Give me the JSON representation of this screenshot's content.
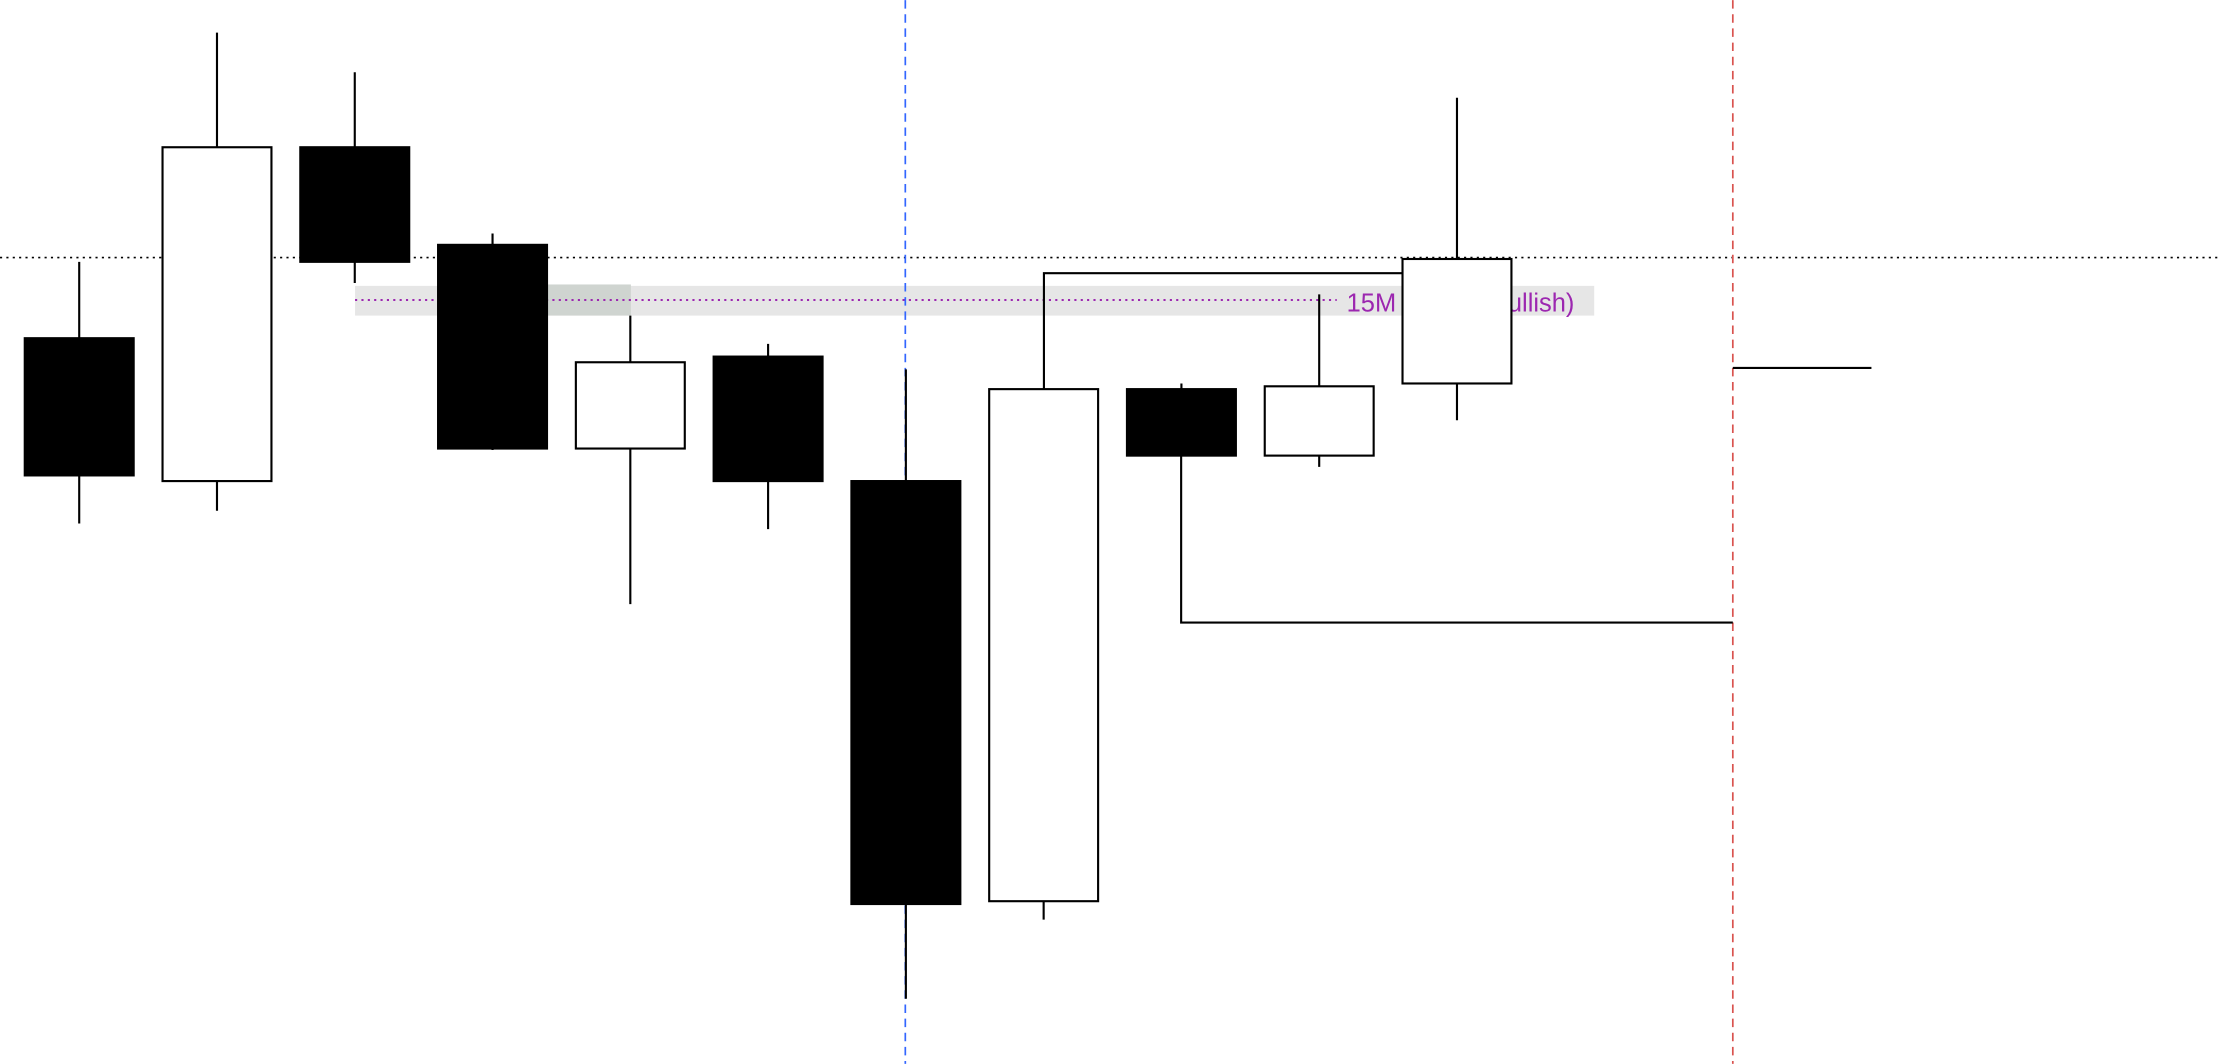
{
  "chart_data": {
    "type": "candlestick",
    "title": "",
    "xlabel": "",
    "ylabel": "",
    "grid": false,
    "ylim": [
      46,
      729
    ],
    "candles": [
      {
        "open": 513,
        "high": 567,
        "low": 382,
        "close": 416
      },
      {
        "open": 412,
        "high": 729,
        "low": 391,
        "close": 648
      },
      {
        "open": 648,
        "high": 701,
        "low": 552,
        "close": 567
      },
      {
        "open": 579,
        "high": 587,
        "low": 434,
        "close": 435
      },
      {
        "open": 435,
        "high": 529,
        "low": 325,
        "close": 496
      },
      {
        "open": 500,
        "high": 509,
        "low": 378,
        "close": 412
      },
      {
        "open": 412,
        "high": 491,
        "low": 46,
        "close": 113
      },
      {
        "open": 115,
        "high": 477,
        "low": 102,
        "close": 477
      },
      {
        "open": 477,
        "high": 481,
        "low": 430,
        "close": 430
      },
      {
        "open": 430,
        "high": 544,
        "low": 422,
        "close": 479
      },
      {
        "open": 481,
        "high": 683,
        "low": 455,
        "close": 569
      }
    ],
    "colors": {
      "bullish": "#ffffff",
      "bearish": "#000000",
      "outline": "#000000"
    },
    "reference_lines": {
      "dotted_level": 570,
      "blue_dashed_at_candle": 7,
      "red_dashed_color": "#d9534f",
      "blue_dashed_color": "#3366ff"
    },
    "zone": {
      "label_start": "15M",
      "label_end": "ullish)",
      "label_color": "#9c27b0",
      "band_color": "#e6e6e6",
      "highlight_color": "#cfd4d0",
      "level": 540
    }
  }
}
